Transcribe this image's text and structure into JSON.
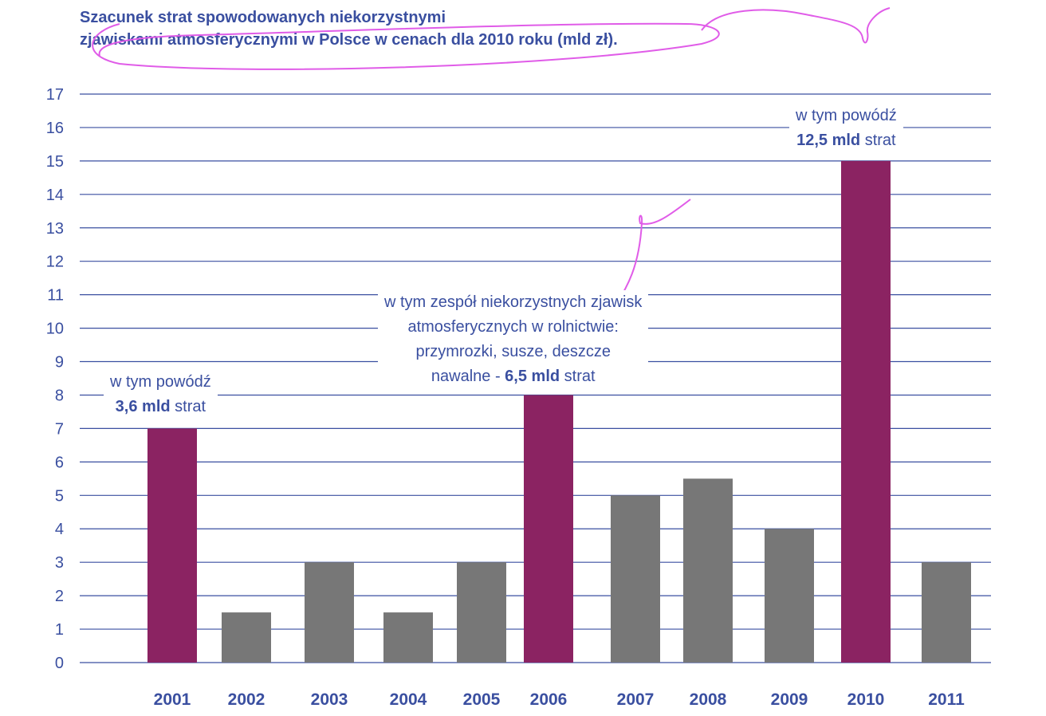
{
  "chart_data": {
    "type": "bar",
    "title_line1": "Szacunek strat spowodowanych niekorzystnymi",
    "title_line2": "zjawiskami atmosferycznymi w Polsce w cenach dla 2010 roku (mld zł).",
    "categories": [
      "2001",
      "2002",
      "2003",
      "2004",
      "2005",
      "2006",
      "2007",
      "2008",
      "2009",
      "2010",
      "2011"
    ],
    "values": [
      7,
      1.5,
      3,
      1.5,
      3,
      8,
      5,
      5.5,
      4,
      15,
      3
    ],
    "highlight": [
      true,
      false,
      false,
      false,
      false,
      true,
      false,
      false,
      false,
      true,
      false
    ],
    "ylim": [
      0,
      17
    ],
    "yticks": [
      "0",
      "1",
      "2",
      "3",
      "4",
      "5",
      "6",
      "7",
      "8",
      "9",
      "10",
      "11",
      "12",
      "13",
      "14",
      "15",
      "16",
      "17"
    ],
    "grid": true,
    "colors": {
      "highlight": "#8b2362",
      "normal": "#777777",
      "grid": "#3a4fa0",
      "text": "#3a4fa0"
    },
    "annotations": [
      {
        "line1": "w tym powódź",
        "value": "3,6 mld",
        "suffix": " strat"
      },
      {
        "line1": "w tym zespół niekorzystnych zjawisk",
        "line2": "atmosferycznych w rolnictwie:",
        "line3": "przymrozki, susze, deszcze",
        "prefix": "nawalne - ",
        "value": "6,5 mld",
        "suffix": " strat"
      },
      {
        "line1": "w tym powódź",
        "value": "12,5 mld",
        "suffix": " strat"
      }
    ]
  }
}
